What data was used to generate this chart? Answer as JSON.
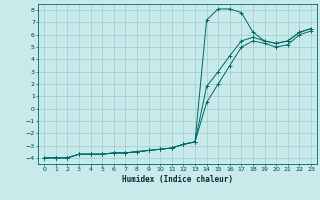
{
  "xlabel": "Humidex (Indice chaleur)",
  "background_color": "#c8eaea",
  "grid_color": "#a0cccc",
  "line_color": "#006868",
  "xlim": [
    -0.5,
    23.5
  ],
  "ylim": [
    -4.5,
    8.5
  ],
  "xticks": [
    0,
    1,
    2,
    3,
    4,
    5,
    6,
    7,
    8,
    9,
    10,
    11,
    12,
    13,
    14,
    15,
    16,
    17,
    18,
    19,
    20,
    21,
    22,
    23
  ],
  "yticks": [
    -4,
    -3,
    -2,
    -1,
    0,
    1,
    2,
    3,
    4,
    5,
    6,
    7,
    8
  ],
  "line1_x": [
    0,
    1,
    2,
    3,
    4,
    5,
    6,
    7,
    8,
    9,
    10,
    11,
    12,
    13,
    14,
    15,
    16,
    17,
    18,
    19,
    20,
    21,
    22,
    23
  ],
  "line1_y": [
    -4,
    -4,
    -4,
    -3.7,
    -3.7,
    -3.7,
    -3.6,
    -3.6,
    -3.5,
    -3.4,
    -3.3,
    -3.2,
    -2.9,
    -2.7,
    7.2,
    8.1,
    8.1,
    7.8,
    6.2,
    5.5,
    5.3,
    5.5,
    6.2,
    6.5
  ],
  "line2_x": [
    0,
    1,
    2,
    3,
    4,
    5,
    6,
    7,
    8,
    9,
    10,
    11,
    12,
    13,
    14,
    15,
    16,
    17,
    18,
    19,
    20,
    21,
    22,
    23
  ],
  "line2_y": [
    -4,
    -4,
    -4,
    -3.7,
    -3.7,
    -3.7,
    -3.6,
    -3.6,
    -3.5,
    -3.4,
    -3.3,
    -3.2,
    -2.9,
    -2.7,
    1.8,
    3.0,
    4.3,
    5.5,
    5.8,
    5.5,
    5.3,
    5.5,
    6.2,
    6.5
  ],
  "line3_x": [
    0,
    1,
    2,
    3,
    4,
    5,
    6,
    7,
    8,
    9,
    10,
    11,
    12,
    13,
    14,
    15,
    16,
    17,
    18,
    19,
    20,
    21,
    22,
    23
  ],
  "line3_y": [
    -4,
    -4,
    -4,
    -3.7,
    -3.7,
    -3.7,
    -3.6,
    -3.6,
    -3.5,
    -3.4,
    -3.3,
    -3.2,
    -2.9,
    -2.7,
    0.5,
    2.0,
    3.5,
    5.0,
    5.5,
    5.3,
    5.0,
    5.2,
    6.0,
    6.3
  ]
}
